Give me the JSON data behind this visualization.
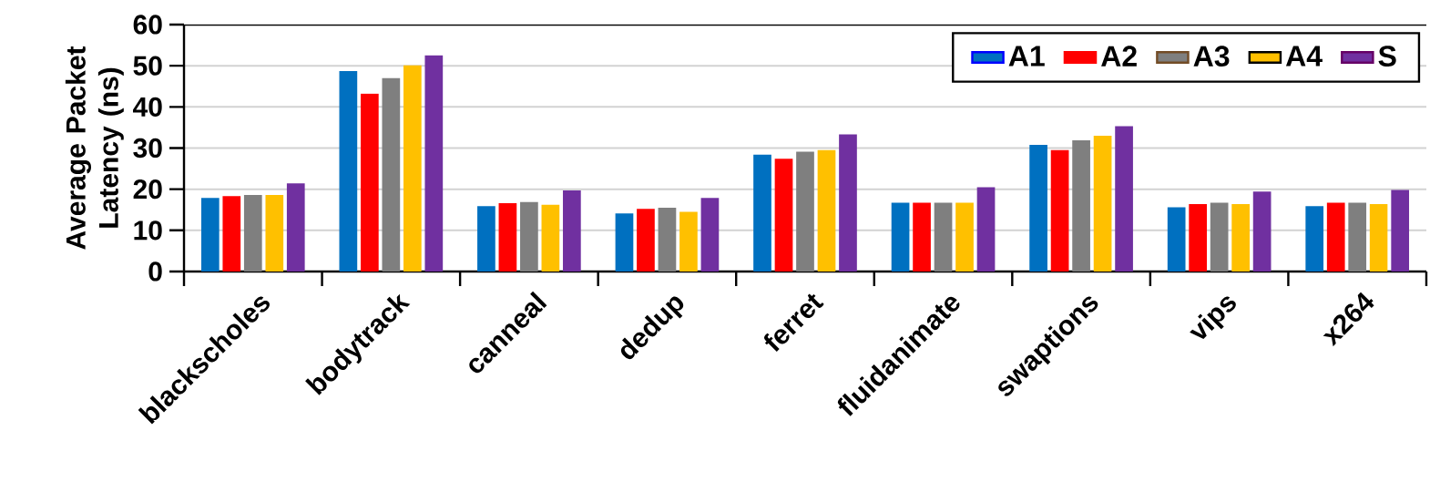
{
  "chart_data": {
    "type": "bar",
    "ylabel": "Average Packet Latency (ns)",
    "categories": [
      "blackscholes",
      "bodytrack",
      "canneal",
      "dedup",
      "ferret",
      "fluidanimate",
      "swaptions",
      "vips",
      "x264"
    ],
    "series": [
      {
        "name": "A1",
        "color": "#0070c0",
        "values": [
          17.9,
          48.7,
          15.9,
          14.1,
          28.4,
          16.7,
          30.8,
          15.6,
          15.9
        ]
      },
      {
        "name": "A2",
        "color": "#ff0000",
        "values": [
          18.3,
          43.2,
          16.6,
          15.2,
          27.4,
          16.7,
          29.5,
          16.4,
          16.7
        ]
      },
      {
        "name": "A3",
        "color": "#7f7f7f",
        "values": [
          18.6,
          47.0,
          16.9,
          15.5,
          29.1,
          16.7,
          31.9,
          16.7,
          16.7
        ]
      },
      {
        "name": "A4",
        "color": "#ffc000",
        "values": [
          18.6,
          50.1,
          16.2,
          14.5,
          29.5,
          16.7,
          33.0,
          16.4,
          16.4
        ]
      },
      {
        "name": "S",
        "color": "#7030a0",
        "values": [
          21.4,
          52.5,
          19.7,
          17.9,
          33.3,
          20.5,
          35.3,
          19.4,
          19.8
        ]
      }
    ],
    "ylim": [
      0,
      60
    ],
    "yticks": [
      0,
      10,
      20,
      30,
      40,
      50,
      60
    ],
    "grid": "y",
    "legend": "top right"
  }
}
